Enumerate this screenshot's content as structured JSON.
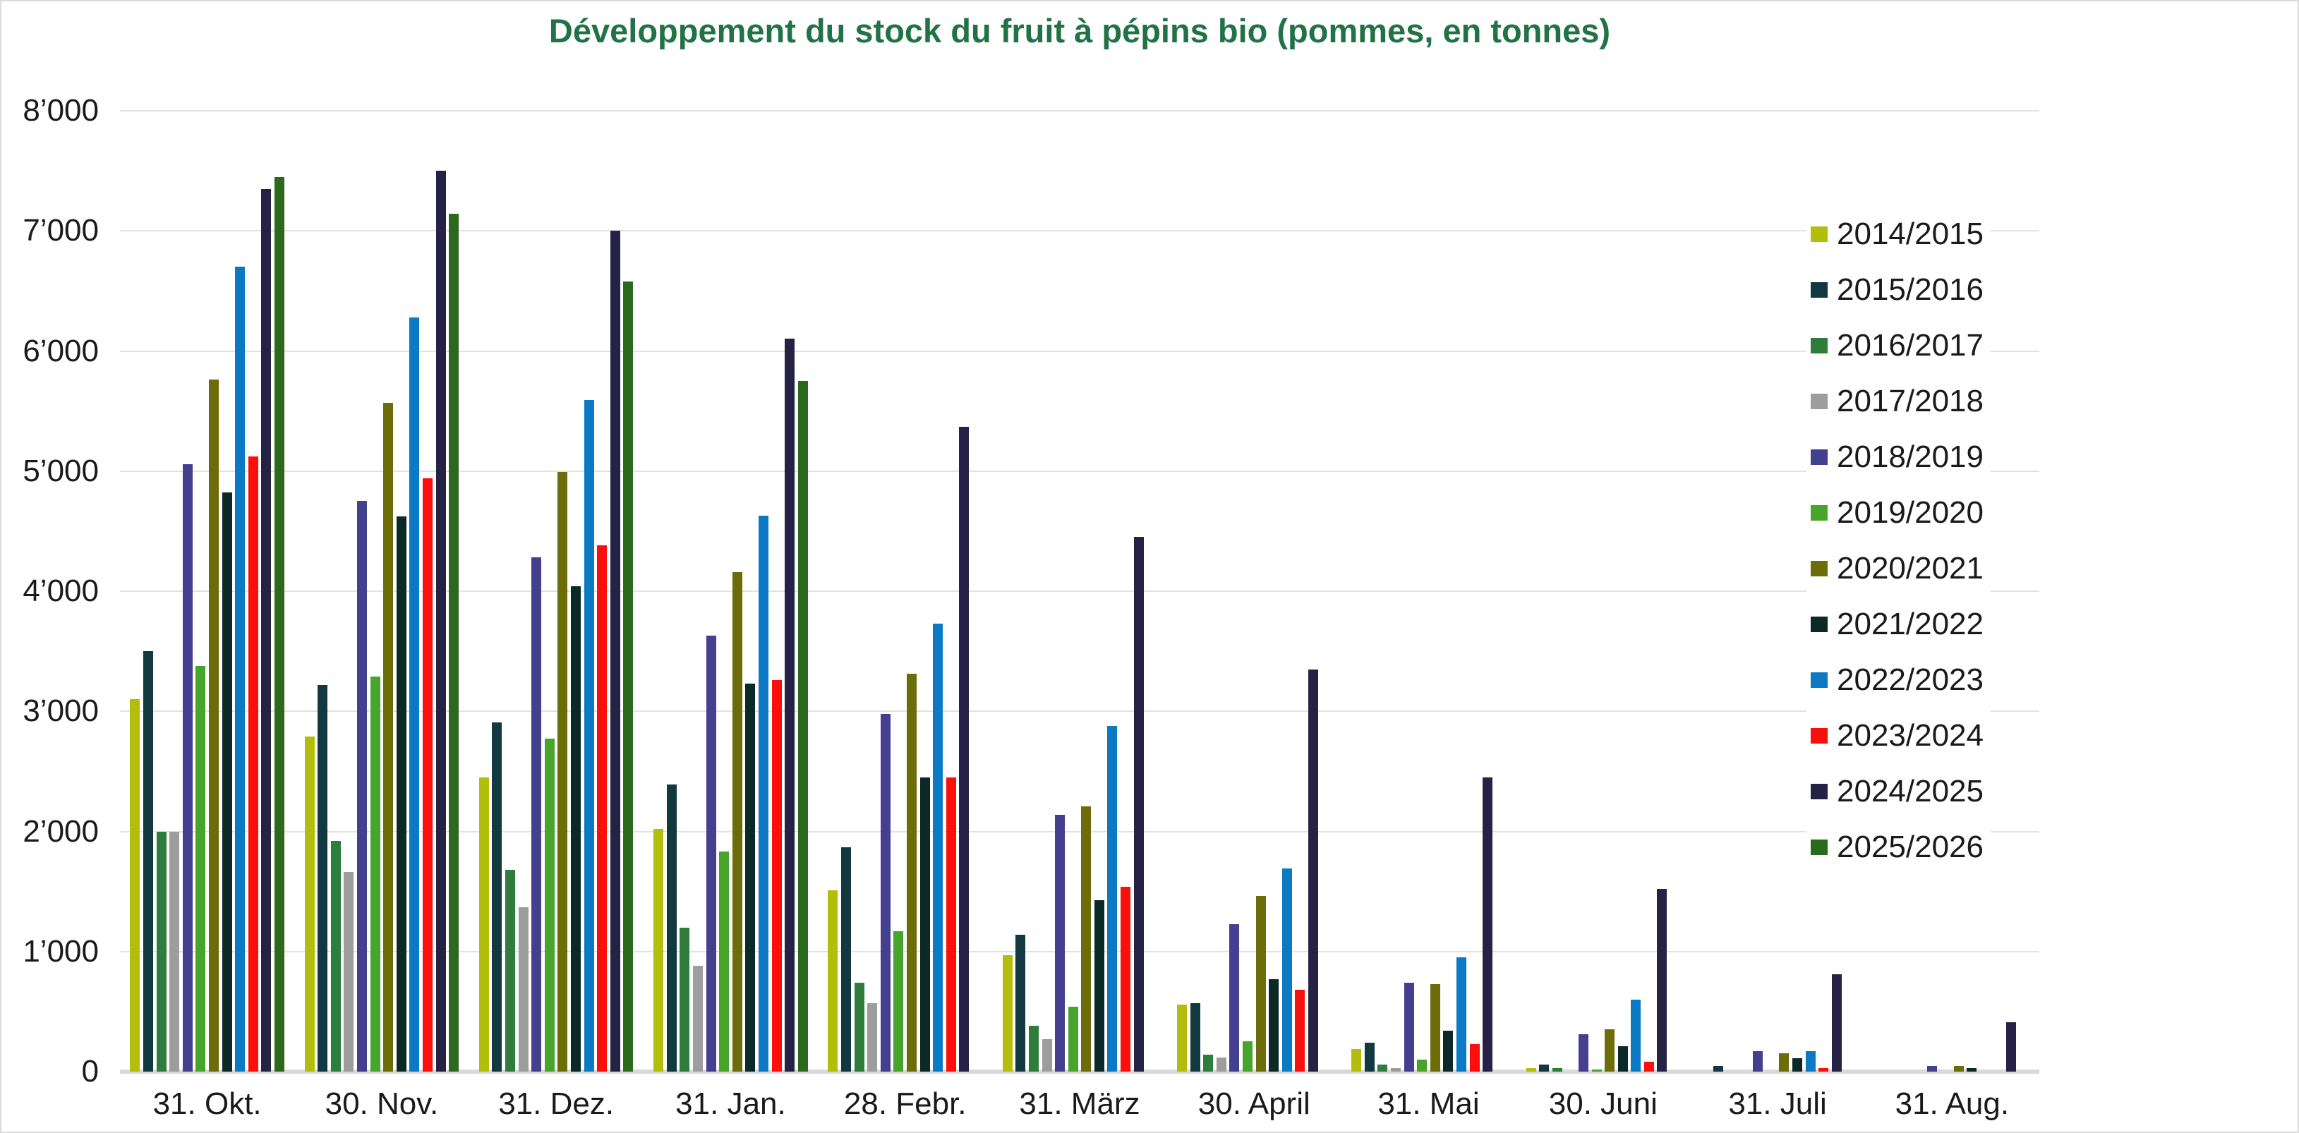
{
  "chart_data": {
    "type": "bar",
    "title": "Développement du stock du fruit à pépins bio (pommes, en tonnes)",
    "title_color": "#217346",
    "xlabel": "",
    "ylabel": "",
    "ylim": [
      0,
      8000
    ],
    "ytick_step": 1000,
    "ytick_labels": [
      "0",
      "1’000",
      "2’000",
      "3’000",
      "4’000",
      "5’000",
      "6’000",
      "7’000",
      "8’000"
    ],
    "grid": "horizontal-light-gray",
    "legend_position": "right-overlay",
    "categories": [
      "31. Okt.",
      "30. Nov.",
      "31. Dez.",
      "31. Jan.",
      "28. Febr.",
      "31. März",
      "30. April",
      "31. Mai",
      "30. Juni",
      "31. Juli",
      "31. Aug."
    ],
    "series": [
      {
        "name": "2014/2015",
        "color": "#b3bd0b",
        "values": [
          3100,
          2790,
          2450,
          2020,
          1510,
          970,
          560,
          190,
          30,
          0,
          0
        ]
      },
      {
        "name": "2015/2016",
        "color": "#11393f",
        "values": [
          3500,
          3220,
          2910,
          2390,
          1870,
          1140,
          570,
          240,
          60,
          50,
          0
        ]
      },
      {
        "name": "2016/2017",
        "color": "#2f7d3c",
        "values": [
          2000,
          1920,
          1680,
          1200,
          740,
          380,
          140,
          60,
          30,
          0,
          0
        ]
      },
      {
        "name": "2017/2018",
        "color": "#9d9d9d",
        "values": [
          2000,
          1660,
          1370,
          880,
          570,
          270,
          120,
          30,
          0,
          0,
          0
        ]
      },
      {
        "name": "2018/2019",
        "color": "#453f90",
        "values": [
          5060,
          4750,
          4280,
          3630,
          2980,
          2140,
          1230,
          740,
          310,
          170,
          50
        ]
      },
      {
        "name": "2019/2020",
        "color": "#47a52c",
        "values": [
          3380,
          3290,
          2770,
          1830,
          1170,
          540,
          250,
          100,
          20,
          0,
          0
        ]
      },
      {
        "name": "2020/2021",
        "color": "#6c6c09",
        "values": [
          5760,
          5570,
          4990,
          4160,
          3310,
          2210,
          1460,
          730,
          350,
          150,
          50
        ]
      },
      {
        "name": "2021/2022",
        "color": "#0b2927",
        "values": [
          4820,
          4620,
          4040,
          3230,
          2450,
          1430,
          770,
          340,
          210,
          110,
          30
        ]
      },
      {
        "name": "2022/2023",
        "color": "#0c79c4",
        "values": [
          6700,
          6280,
          5590,
          4630,
          3730,
          2880,
          1690,
          950,
          600,
          170,
          0
        ]
      },
      {
        "name": "2023/2024",
        "color": "#fa0f0c",
        "values": [
          5120,
          4940,
          4380,
          3260,
          2450,
          1540,
          680,
          230,
          80,
          30,
          0
        ]
      },
      {
        "name": "2024/2025",
        "color": "#262245",
        "values": [
          7350,
          7500,
          7000,
          6100,
          5370,
          4450,
          3350,
          2450,
          1520,
          810,
          410
        ]
      },
      {
        "name": "2025/2026",
        "color": "#2b6a1d",
        "values": [
          7450,
          7140,
          6580,
          5750,
          0,
          0,
          0,
          0,
          0,
          0,
          0
        ]
      }
    ]
  }
}
